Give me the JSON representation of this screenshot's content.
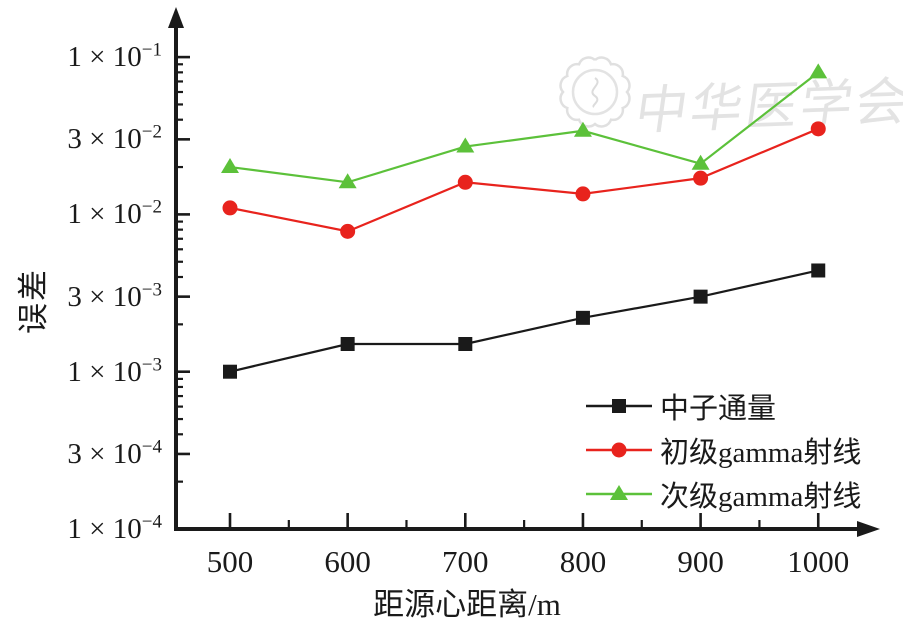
{
  "watermark": {
    "seal_icon": "chinese-medical-association-seal",
    "text": "中华医学会"
  },
  "chart_data": {
    "type": "line",
    "title": "",
    "xlabel": "距源心距离/m",
    "ylabel": "误差",
    "x_scale": "linear",
    "y_scale": "log",
    "grid": false,
    "legend_position": "inside bottom-right",
    "x": [
      500,
      600,
      700,
      800,
      900,
      1000
    ],
    "x_minor_ticks": [
      550,
      650,
      750,
      850,
      950
    ],
    "xlim": [
      453,
      1055
    ],
    "ylim": [
      0.0001,
      0.2
    ],
    "y_ticks": [
      {
        "value": 0.1,
        "mantissa": "1",
        "exponent": "-1"
      },
      {
        "value": 0.03,
        "mantissa": "3",
        "exponent": "-2"
      },
      {
        "value": 0.01,
        "mantissa": "1",
        "exponent": "-2"
      },
      {
        "value": 0.003,
        "mantissa": "3",
        "exponent": "-3"
      },
      {
        "value": 0.001,
        "mantissa": "1",
        "exponent": "-3"
      },
      {
        "value": 0.0003,
        "mantissa": "3",
        "exponent": "-4"
      },
      {
        "value": 0.0001,
        "mantissa": "1",
        "exponent": "-4"
      }
    ],
    "series": [
      {
        "name": "中子通量",
        "marker": "square",
        "color": "#1a1a1a",
        "values": [
          0.001,
          0.0015,
          0.0015,
          0.0022,
          0.003,
          0.0044
        ]
      },
      {
        "name": "初级gamma射线",
        "marker": "circle",
        "color": "#e8231d",
        "values": [
          0.011,
          0.0078,
          0.016,
          0.0135,
          0.017,
          0.035
        ]
      },
      {
        "name": "次级gamma射线",
        "marker": "triangle",
        "color": "#5cc13a",
        "values": [
          0.02,
          0.016,
          0.027,
          0.034,
          0.021,
          0.08
        ]
      }
    ]
  }
}
